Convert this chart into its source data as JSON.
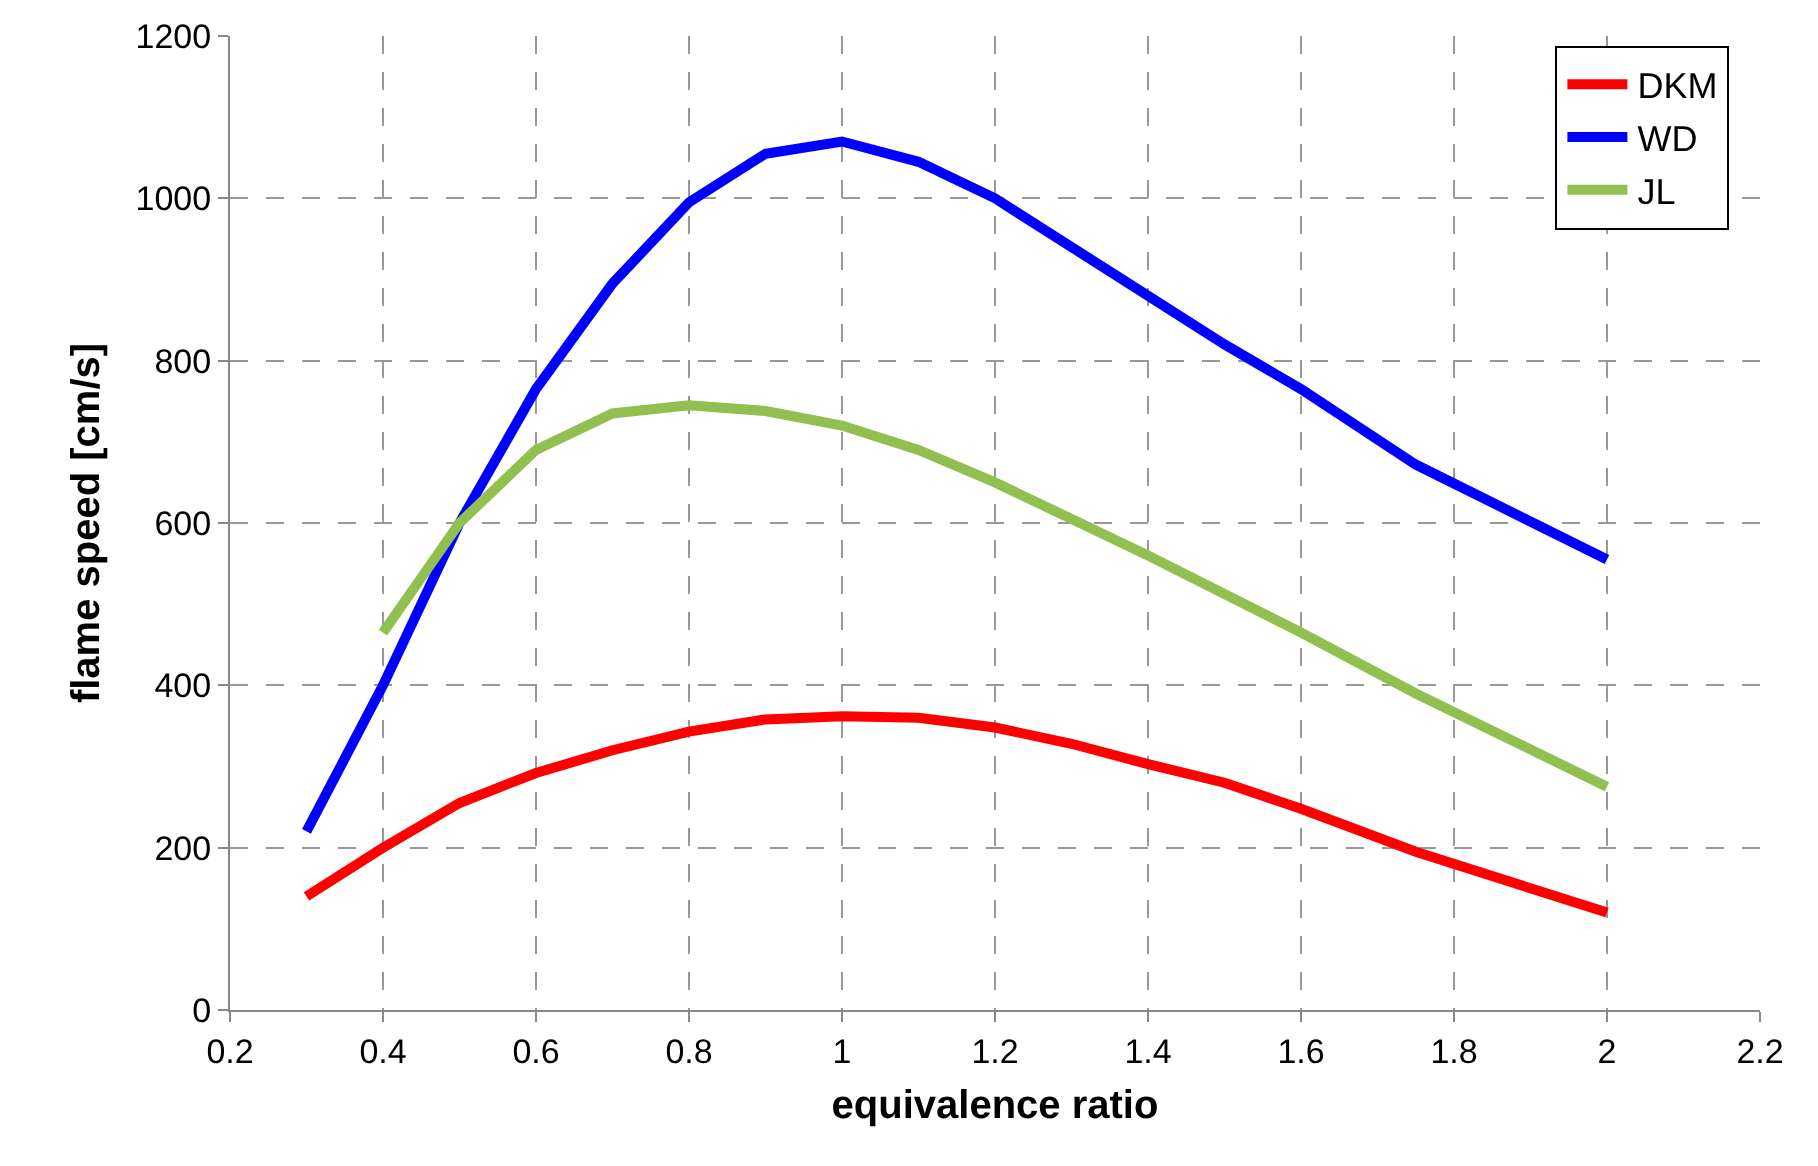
{
  "chart_data": {
    "type": "line",
    "xlabel": "equivalence ratio",
    "ylabel": "flame speed [cm/s]",
    "xlim": [
      0.2,
      2.2
    ],
    "xticks": [
      0.2,
      0.4,
      0.6,
      0.8,
      1,
      1.2,
      1.4,
      1.6,
      1.8,
      2,
      2.2
    ],
    "ylim": [
      0,
      1200
    ],
    "yticks": [
      0,
      200,
      400,
      600,
      800,
      1000,
      1200
    ],
    "grid": true,
    "legend": "top right",
    "marker": "none",
    "line_style": "solid",
    "series": [
      {
        "name": "DKM",
        "color": "#ff0000",
        "x": [
          0.3,
          0.4,
          0.5,
          0.6,
          0.7,
          0.8,
          0.9,
          1.0,
          1.1,
          1.2,
          1.3,
          1.4,
          1.5,
          1.6,
          1.75,
          2.0
        ],
        "values": [
          140,
          200,
          255,
          292,
          320,
          343,
          358,
          362,
          360,
          348,
          328,
          303,
          280,
          248,
          195,
          120
        ]
      },
      {
        "name": "WD",
        "color": "#0000ff",
        "x": [
          0.3,
          0.4,
          0.5,
          0.6,
          0.7,
          0.8,
          0.9,
          1.0,
          1.1,
          1.2,
          1.4,
          1.5,
          1.6,
          1.75,
          2.0
        ],
        "values": [
          220,
          400,
          600,
          765,
          895,
          995,
          1055,
          1070,
          1045,
          1000,
          880,
          820,
          765,
          672,
          555
        ]
      },
      {
        "name": "JL",
        "color": "#92c050",
        "x": [
          0.4,
          0.5,
          0.6,
          0.7,
          0.8,
          0.9,
          1.0,
          1.1,
          1.2,
          1.4,
          1.6,
          1.75,
          2.0
        ],
        "values": [
          465,
          600,
          690,
          735,
          745,
          738,
          720,
          690,
          650,
          560,
          465,
          390,
          275
        ]
      }
    ]
  }
}
